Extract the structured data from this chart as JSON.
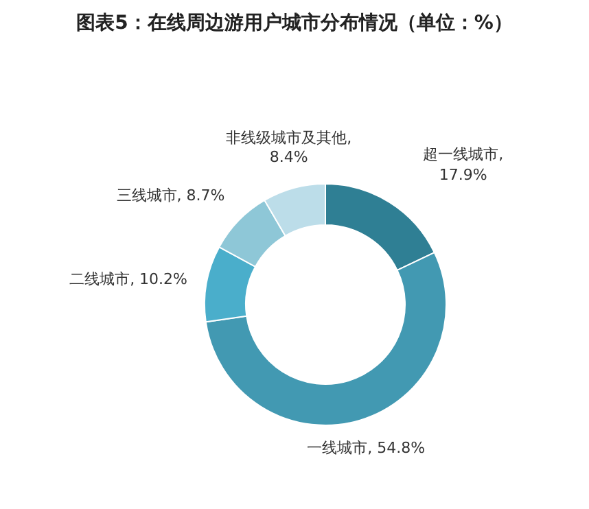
{
  "chart_data": {
    "type": "donut",
    "title": "图表5：在线周边游用户城市分布情况（单位：%）",
    "categories": [
      "超一线城市",
      "一线城市",
      "二线城市",
      "三线城市",
      "非线级城市及其他"
    ],
    "values": [
      17.9,
      54.8,
      10.2,
      8.7,
      8.4
    ],
    "value_labels": [
      ", 17.9%",
      ", 54.8%",
      ", 10.2%",
      ", 8.7%",
      ", 8.4%"
    ],
    "colors": [
      "#2f7f94",
      "#4299b2",
      "#4aaecb",
      "#8ec7d7",
      "#bcdde9"
    ]
  }
}
